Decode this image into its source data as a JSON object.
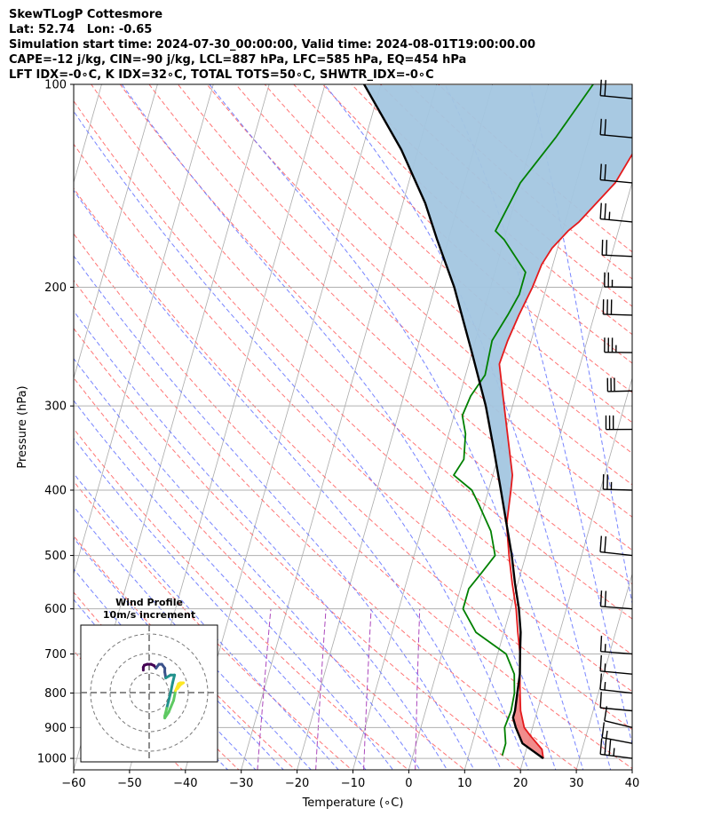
{
  "header": {
    "line1": "SkewTLogP Cottesmore",
    "line2": "Lat: 52.74   Lon: -0.65",
    "line3": "Simulation start time: 2024-07-30_00:00:00, Valid time: 2024-08-01T19:00:00.00",
    "line4": "CAPE=-12 j/kg, CIN=-90 j/kg, LCL=887 hPa, LFC=585 hPa, EQ=454 hPa",
    "line5": "LFT IDX=-0∘C, K IDX=32∘C, TOTAL TOTS=50∘C, SHWTR_IDX=-0∘C"
  },
  "chart_data": {
    "type": "skew-t",
    "xlabel": "Temperature (∘C)",
    "ylabel": "Pressure (hPa)",
    "xlim": [
      -60,
      40
    ],
    "ylim": [
      1040,
      100
    ],
    "y_scale": "log",
    "grid": true,
    "x_ticks": [
      -60,
      -50,
      -40,
      -30,
      -20,
      -10,
      0,
      10,
      20,
      30,
      40
    ],
    "x_tick_labels": [
      "−60",
      "−50",
      "−40",
      "−30",
      "−20",
      "−10",
      "0",
      "10",
      "20",
      "30",
      "40"
    ],
    "y_ticks": [
      1000,
      900,
      800,
      700,
      600,
      500,
      400,
      300,
      200,
      100
    ],
    "y_tick_labels": [
      "1000",
      "900",
      "800",
      "700",
      "600",
      "500",
      "400",
      "300",
      "200",
      "100"
    ],
    "series": [
      {
        "role": "temperature",
        "color": "#e41a1c",
        "points": [
          [
            1000,
            23.5
          ],
          [
            970,
            22.8
          ],
          [
            925,
            20.0
          ],
          [
            900,
            18.5
          ],
          [
            850,
            17.0
          ],
          [
            800,
            16.0
          ],
          [
            750,
            15.0
          ],
          [
            700,
            14.0
          ],
          [
            650,
            12.5
          ],
          [
            600,
            11.0
          ],
          [
            550,
            9.0
          ],
          [
            500,
            7.0
          ],
          [
            450,
            5.0
          ],
          [
            400,
            4.0
          ],
          [
            380,
            3.5
          ],
          [
            300,
            -1.5
          ],
          [
            260,
            -4.5
          ],
          [
            240,
            -4.2
          ],
          [
            220,
            -3.5
          ],
          [
            200,
            -2.5
          ],
          [
            185,
            -2.0
          ],
          [
            175,
            -1.0
          ],
          [
            165,
            1.0
          ],
          [
            160,
            2.5
          ],
          [
            140,
            7.0
          ],
          [
            120,
            9.5
          ],
          [
            100,
            12.0
          ]
        ]
      },
      {
        "role": "dewpoint",
        "color": "#008000",
        "points": [
          [
            990,
            16.0
          ],
          [
            950,
            16.0
          ],
          [
            900,
            15.0
          ],
          [
            850,
            15.3
          ],
          [
            800,
            15.0
          ],
          [
            750,
            14.0
          ],
          [
            700,
            11.5
          ],
          [
            650,
            5.0
          ],
          [
            600,
            1.5
          ],
          [
            560,
            1.5
          ],
          [
            530,
            3.0
          ],
          [
            500,
            4.5
          ],
          [
            460,
            2.5
          ],
          [
            420,
            -1.0
          ],
          [
            400,
            -3.0
          ],
          [
            380,
            -7.0
          ],
          [
            360,
            -6.0
          ],
          [
            330,
            -7.0
          ],
          [
            310,
            -8.5
          ],
          [
            290,
            -8.0
          ],
          [
            270,
            -6.5
          ],
          [
            240,
            -7.0
          ],
          [
            220,
            -5.5
          ],
          [
            205,
            -4.5
          ],
          [
            190,
            -4.5
          ],
          [
            170,
            -10.0
          ],
          [
            165,
            -12.0
          ],
          [
            140,
            -10.0
          ],
          [
            120,
            -6.0
          ],
          [
            100,
            -2.0
          ]
        ]
      },
      {
        "role": "parcel",
        "color": "#000000",
        "points": [
          [
            1000,
            23.5
          ],
          [
            950,
            19.0
          ],
          [
            900,
            17.0
          ],
          [
            870,
            16.0
          ],
          [
            850,
            16.0
          ],
          [
            800,
            15.5
          ],
          [
            750,
            15.0
          ],
          [
            700,
            14.0
          ],
          [
            650,
            13.0
          ],
          [
            600,
            11.5
          ],
          [
            550,
            9.5
          ],
          [
            500,
            7.5
          ],
          [
            450,
            5.0
          ],
          [
            400,
            2.2
          ],
          [
            350,
            -1.0
          ],
          [
            300,
            -4.8
          ],
          [
            250,
            -10.0
          ],
          [
            200,
            -16.5
          ],
          [
            170,
            -22.0
          ],
          [
            150,
            -26.0
          ],
          [
            125,
            -33.0
          ],
          [
            100,
            -43.0
          ]
        ]
      }
    ],
    "positive_area": {
      "color": "#a3c6e0",
      "from_hPa": 454,
      "to_hPa": 100
    },
    "negative_area": {
      "color": "#f08080",
      "from_hPa": 1000,
      "to_hPa": 800
    },
    "dry_adiabat_color": "#ff6666",
    "moist_adiabat_color": "#5f6fff",
    "mixing_ratio_color": "#ab47bc",
    "isotherm_color": "#aaaaaa",
    "wind_barbs": [
      {
        "pressure": 1000,
        "speed_kt": 35,
        "dir_deg": 85
      },
      {
        "pressure": 950,
        "speed_kt": 15,
        "dir_deg": 70
      },
      {
        "pressure": 900,
        "speed_kt": 10,
        "dir_deg": 60
      },
      {
        "pressure": 850,
        "speed_kt": 10,
        "dir_deg": 95
      },
      {
        "pressure": 800,
        "speed_kt": 15,
        "dir_deg": 90
      },
      {
        "pressure": 750,
        "speed_kt": 15,
        "dir_deg": 95
      },
      {
        "pressure": 700,
        "speed_kt": 15,
        "dir_deg": 100
      },
      {
        "pressure": 600,
        "speed_kt": 20,
        "dir_deg": 100
      },
      {
        "pressure": 500,
        "speed_kt": 20,
        "dir_deg": 90
      },
      {
        "pressure": 400,
        "speed_kt": 25,
        "dir_deg": 115
      },
      {
        "pressure": 325,
        "speed_kt": 30,
        "dir_deg": 125
      },
      {
        "pressure": 285,
        "speed_kt": 30,
        "dir_deg": 130
      },
      {
        "pressure": 250,
        "speed_kt": 35,
        "dir_deg": 120
      },
      {
        "pressure": 220,
        "speed_kt": 30,
        "dir_deg": 115
      },
      {
        "pressure": 200,
        "speed_kt": 25,
        "dir_deg": 120
      },
      {
        "pressure": 180,
        "speed_kt": 20,
        "dir_deg": 110
      },
      {
        "pressure": 160,
        "speed_kt": 25,
        "dir_deg": 95
      },
      {
        "pressure": 140,
        "speed_kt": 20,
        "dir_deg": 95
      },
      {
        "pressure": 120,
        "speed_kt": 20,
        "dir_deg": 95
      },
      {
        "pressure": 105,
        "speed_kt": 20,
        "dir_deg": 95
      }
    ],
    "wind_profile": {
      "title": "Wind Profile",
      "subtitle": "10m/s increment",
      "rings_ms": [
        10,
        20,
        30
      ],
      "max_ms": 35,
      "hodograph": [
        [
          -3.0,
          11.5
        ],
        [
          -3.0,
          13.0
        ],
        [
          -2.5,
          14.0
        ],
        [
          -1.0,
          14.5
        ],
        [
          1.0,
          14.5
        ],
        [
          2.5,
          13.8
        ],
        [
          3.5,
          12.5
        ],
        [
          5.0,
          14.5
        ],
        [
          6.5,
          14.5
        ],
        [
          8.0,
          12.5
        ],
        [
          8.0,
          10.5
        ],
        [
          8.5,
          7.5
        ],
        [
          11.0,
          9.0
        ],
        [
          13.0,
          9.0
        ],
        [
          12.0,
          5.0
        ],
        [
          11.0,
          0.0
        ],
        [
          10.0,
          -4.0
        ],
        [
          9.0,
          -8.0
        ],
        [
          8.0,
          -12.0
        ],
        [
          8.0,
          -13.0
        ],
        [
          10.0,
          -10.0
        ],
        [
          12.5,
          -4.0
        ],
        [
          13.5,
          1.0
        ],
        [
          15.0,
          4.5
        ],
        [
          16.0,
          5.0
        ],
        [
          17.5,
          5.0
        ],
        [
          16.0,
          4.0
        ],
        [
          14.5,
          2.0
        ]
      ],
      "colors": [
        "#440154",
        "#3b528b",
        "#21918c",
        "#5ec962",
        "#fde725"
      ]
    }
  }
}
